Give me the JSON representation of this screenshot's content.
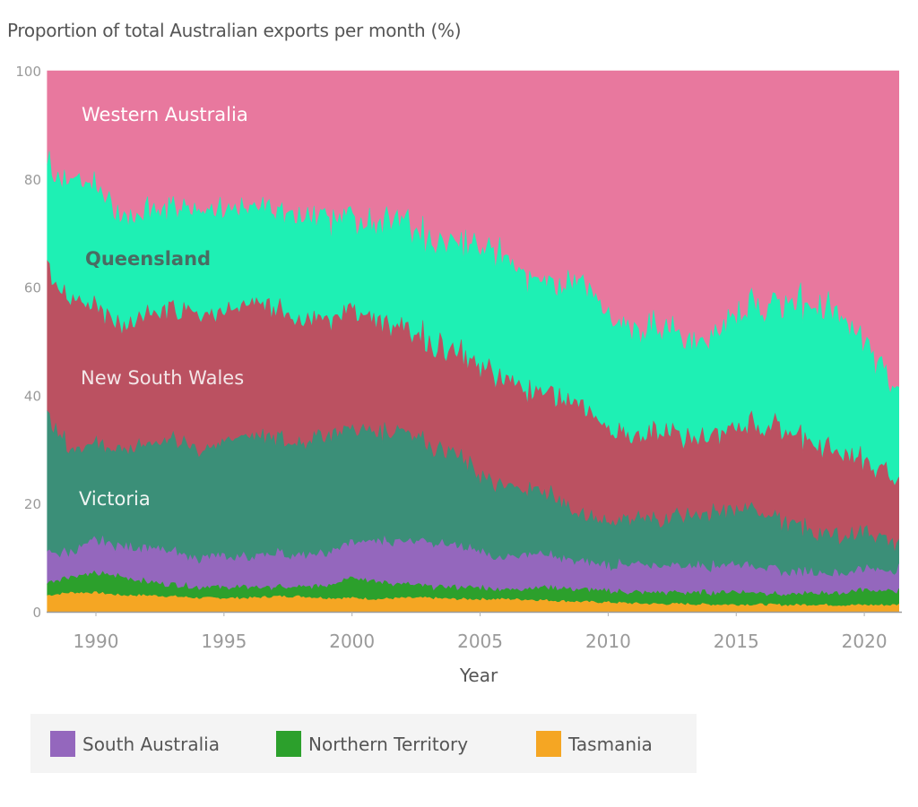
{
  "chart_data": {
    "type": "area",
    "stacked": true,
    "title": "Proportion of total Australian exports per month (%)",
    "xlabel": "Year",
    "ylabel": "",
    "xlim": [
      1988.1,
      2021.4
    ],
    "ylim": [
      0,
      100
    ],
    "xticks": [
      "1990",
      "1995",
      "2000",
      "2005",
      "2010",
      "2015",
      "2020"
    ],
    "yticks": [
      "0",
      "20",
      "40",
      "60",
      "80",
      "100"
    ],
    "grid": false,
    "x": [
      1988.1,
      1989,
      1990,
      1991,
      1992,
      1993,
      1994,
      1995,
      1996,
      1997,
      1998,
      1999,
      2000,
      2001,
      2002,
      2003,
      2004,
      2005,
      2006,
      2007,
      2008,
      2009,
      2010,
      2011,
      2012,
      2013,
      2014,
      2015,
      2016,
      2017,
      2018,
      2019,
      2020,
      2021,
      2021.4
    ],
    "series": [
      {
        "name": "Tasmania",
        "color": "#f5a623",
        "values": [
          3.0,
          3.5,
          3.5,
          3.0,
          3.0,
          2.8,
          2.5,
          2.5,
          2.5,
          2.8,
          2.8,
          2.5,
          2.5,
          2.3,
          2.5,
          2.5,
          2.3,
          2.3,
          2.3,
          2.2,
          2.0,
          1.8,
          1.7,
          1.5,
          1.4,
          1.4,
          1.3,
          1.3,
          1.3,
          1.2,
          1.3,
          1.2,
          1.2,
          1.2,
          1.3
        ]
      },
      {
        "name": "Northern Territory",
        "color": "#2ca02c",
        "values": [
          2.5,
          3.0,
          3.5,
          3.5,
          2.5,
          2.2,
          2.0,
          2.0,
          2.0,
          1.7,
          1.7,
          2.5,
          4.0,
          3.2,
          2.5,
          2.0,
          2.2,
          2.2,
          1.7,
          2.3,
          2.5,
          2.2,
          2.1,
          2.0,
          2.1,
          2.1,
          2.2,
          2.5,
          2.2,
          1.8,
          2.2,
          2.3,
          2.8,
          2.6,
          2.5
        ]
      },
      {
        "name": "South Australia",
        "color": "#9467bd",
        "values": [
          5.5,
          4.5,
          6.0,
          5.5,
          6.5,
          6.0,
          5.5,
          5.5,
          5.5,
          6.5,
          5.5,
          6.0,
          6.5,
          7.5,
          8.0,
          8.5,
          7.5,
          6.5,
          6.0,
          6.5,
          5.5,
          5.0,
          4.7,
          5.0,
          5.0,
          5.0,
          5.0,
          5.2,
          5.0,
          4.0,
          4.0,
          3.5,
          4.0,
          3.7,
          4.2
        ]
      },
      {
        "name": "Victoria",
        "color": "#3b8f78",
        "values": [
          25,
          19,
          18,
          18,
          19,
          21,
          20,
          21,
          23,
          21,
          21,
          22,
          21,
          20,
          21,
          18,
          17,
          14,
          13,
          12,
          11,
          8,
          8.5,
          8.5,
          8.5,
          9.5,
          9.5,
          10,
          10.5,
          9,
          7.5,
          7,
          7,
          5.5,
          5
        ]
      },
      {
        "name": "New South Wales",
        "color": "#bb5161",
        "values": [
          27,
          27,
          26,
          23,
          24,
          24,
          26,
          24,
          24,
          24,
          23,
          22,
          22,
          21,
          19,
          19,
          19,
          20,
          20,
          18,
          19,
          20,
          17,
          15,
          16,
          15,
          14,
          15,
          16,
          17,
          16,
          16,
          13,
          12,
          11
        ]
      },
      {
        "name": "Queensland",
        "color": "#1ef0b4",
        "values": [
          19,
          22,
          22,
          20,
          19,
          19,
          19,
          19,
          18,
          18,
          19,
          19,
          17,
          18,
          20,
          19,
          20,
          22,
          23,
          21,
          20,
          23,
          21,
          20,
          19,
          18,
          18,
          21,
          22,
          24,
          26,
          25,
          23,
          17,
          16
        ]
      },
      {
        "name": "Western Australia",
        "color": "#e8789e",
        "values": [
          18,
          21,
          21,
          27,
          26,
          25,
          25,
          26,
          25,
          26,
          27,
          26,
          27,
          28,
          27,
          31,
          32,
          33,
          34,
          38,
          40,
          40,
          45,
          48,
          48,
          49,
          50,
          45,
          43,
          43,
          43,
          45,
          49,
          58,
          60
        ]
      }
    ],
    "area_labels": [
      {
        "series": "Western Australia",
        "text": "Western Australia",
        "color": "#ffffff"
      },
      {
        "series": "Queensland",
        "text": "Queensland",
        "color": "#4a6b62"
      },
      {
        "series": "New South Wales",
        "text": "New South Wales",
        "color": "#f3e6e8"
      },
      {
        "series": "Victoria",
        "text": "Victoria",
        "color": "#f0f5f3"
      }
    ],
    "legend": {
      "placement": "bottom-left",
      "entries": [
        "South Australia",
        "Northern Territory",
        "Tasmania"
      ]
    }
  }
}
